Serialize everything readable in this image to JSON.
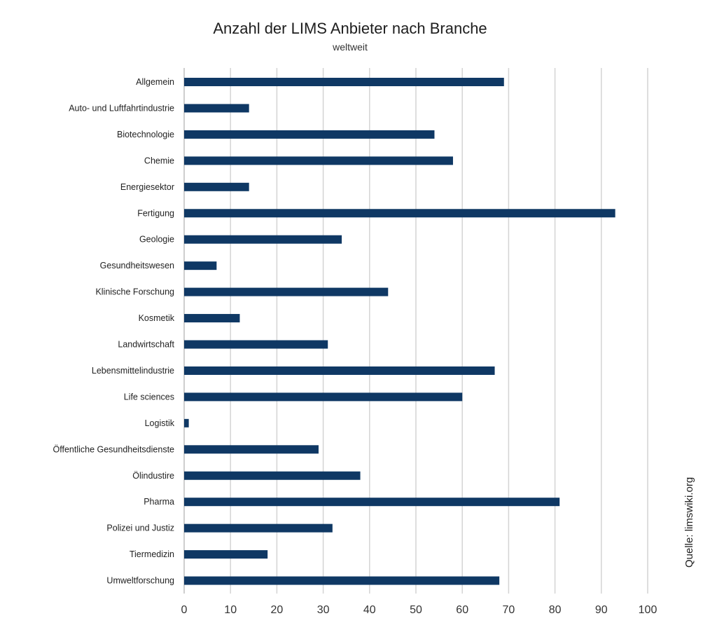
{
  "chart_data": {
    "type": "bar",
    "orientation": "horizontal",
    "title": "Anzahl der LIMS Anbieter nach Branche",
    "subtitle": "weltweit",
    "categories": [
      "Allgemein",
      "Auto- und Luftfahrtindustrie",
      "Biotechnologie",
      "Chemie",
      "Energiesektor",
      "Fertigung",
      "Geologie",
      "Gesundheitswesen",
      "Klinische Forschung",
      "Kosmetik",
      "Landwirtschaft",
      "Lebensmittelindustrie",
      "Life sciences",
      "Logistik",
      "Öffentliche Gesundheitsdienste",
      "Ölindustire",
      "Pharma",
      "Polizei und Justiz",
      "Tiermedizin",
      "Umweltforschung"
    ],
    "values": [
      69,
      14,
      54,
      58,
      14,
      93,
      34,
      7,
      44,
      12,
      31,
      67,
      60,
      1,
      29,
      38,
      81,
      32,
      18,
      68
    ],
    "xlim": [
      0,
      100
    ],
    "xticks": [
      0,
      10,
      20,
      30,
      40,
      50,
      60,
      70,
      80,
      90,
      100
    ],
    "grid": "vertical",
    "bar_color": "#0f3864",
    "grid_color": "#d4d4d4",
    "source": "Quelle: limswiki.org"
  }
}
